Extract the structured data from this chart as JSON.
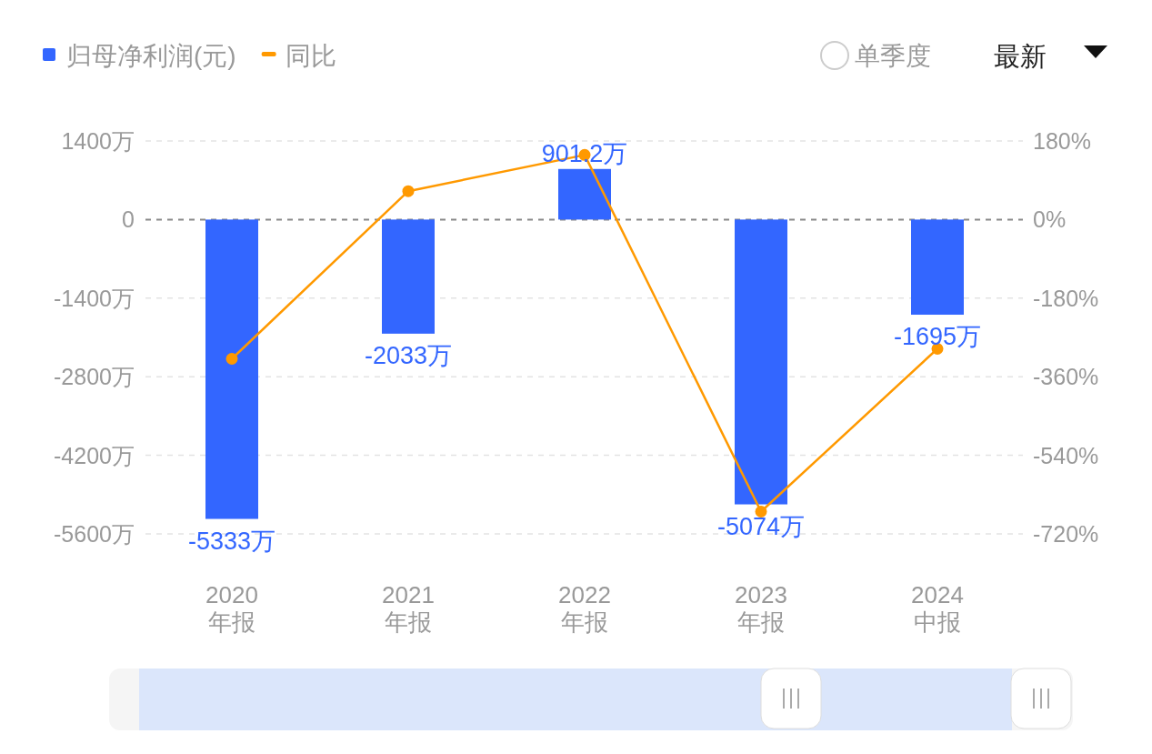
{
  "chart_data": {
    "type": "bar",
    "categories": [
      "2020\n年报",
      "2021\n年报",
      "2022\n年报",
      "2023\n年报",
      "2024\n中报"
    ],
    "series": [
      {
        "name": "归母净利润(元)",
        "color": "#3366ff",
        "values": [
          -5333,
          -2033,
          901.2,
          -5074,
          -1695
        ],
        "value_labels": [
          "-5333万",
          "-2033万",
          "901.2万",
          "-5074万",
          "-1695万"
        ]
      },
      {
        "name": "同比",
        "type": "line",
        "axis": "y2",
        "color": "#ff9900",
        "values": [
          -319,
          65,
          148,
          -669,
          -296
        ]
      }
    ],
    "ylim": [
      -5600,
      1400
    ],
    "yticks": [
      {
        "value": 1400,
        "label": "1400万"
      },
      0,
      {
        "value": -1400,
        "label": "-1400万"
      },
      {
        "value": -2800,
        "label": "-2800万"
      },
      {
        "value": -4200,
        "label": "-4200万"
      },
      {
        "value": -5600,
        "label": "-5600万"
      }
    ],
    "y2lim": [
      -720,
      180
    ],
    "y2ticks": [
      {
        "value": 180,
        "label": "180%"
      },
      {
        "value": 0,
        "label": "0%"
      },
      {
        "value": -180,
        "label": "-180%"
      },
      {
        "value": -360,
        "label": "-360%"
      },
      {
        "value": -540,
        "label": "-540%"
      },
      {
        "value": -720,
        "label": "-720%"
      }
    ],
    "grid": "y",
    "ref_lines": [
      {
        "axis": "y",
        "value": 0,
        "color": "#888888",
        "line_style": "dashed"
      }
    ],
    "legend": "top left",
    "marker": "circle",
    "annotations": [
      "单季度",
      "最新"
    ]
  }
}
